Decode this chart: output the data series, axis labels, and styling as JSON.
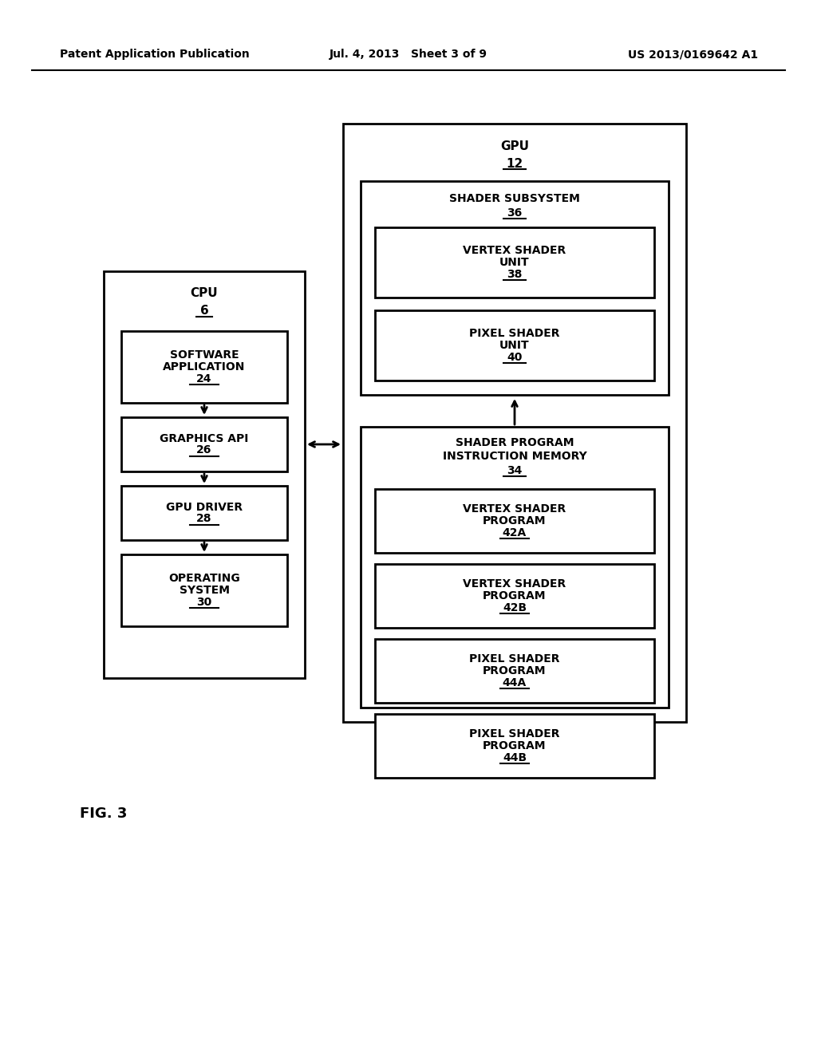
{
  "header_left": "Patent Application Publication",
  "header_mid": "Jul. 4, 2013   Sheet 3 of 9",
  "header_right": "US 2013/0169642 A1",
  "fig_label": "FIG. 3",
  "bg_color": "#ffffff",
  "line_color": "#000000"
}
